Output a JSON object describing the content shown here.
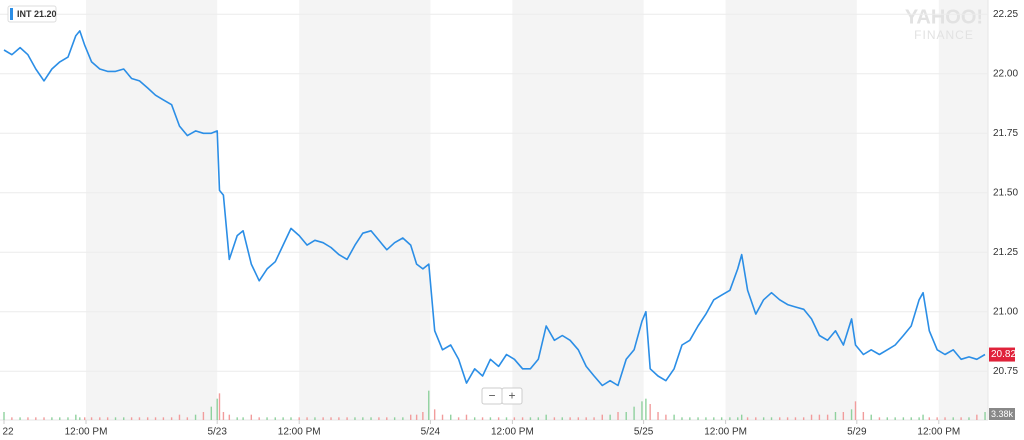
{
  "chart_data": {
    "type": "line",
    "legend_label": "INT 21.20",
    "last_value_label": "20.82",
    "volume_label": "3.38k",
    "watermark": [
      "YAHOO!",
      "FINANCE"
    ],
    "controls": [
      "−",
      "+"
    ],
    "xlim": [
      0,
      30
    ],
    "xticks": [
      {
        "value": 0,
        "label": "22"
      },
      {
        "value": 2.5,
        "label": "12:00 PM"
      },
      {
        "value": 6.5,
        "label": "5/23"
      },
      {
        "value": 9,
        "label": "12:00 PM"
      },
      {
        "value": 13,
        "label": "5/24"
      },
      {
        "value": 15.5,
        "label": "12:00 PM"
      },
      {
        "value": 19.5,
        "label": "5/25"
      },
      {
        "value": 22,
        "label": "12:00 PM"
      },
      {
        "value": 26,
        "label": "5/29"
      },
      {
        "value": 28.5,
        "label": "12:00 PM"
      }
    ],
    "ylim": [
      20.65,
      22.31
    ],
    "yticks": [
      {
        "value": 20.75,
        "label": "20.75"
      },
      {
        "value": 21,
        "label": "21.00"
      },
      {
        "value": 21.25,
        "label": "21.25"
      },
      {
        "value": 21.5,
        "label": "21.50"
      },
      {
        "value": 21.75,
        "label": "21.75"
      },
      {
        "value": 22,
        "label": "22.00"
      },
      {
        "value": 22.25,
        "label": "22.25"
      }
    ],
    "grid": true,
    "vlim": [
      0,
      12
    ],
    "x": [
      0,
      0.24,
      0.49,
      0.73,
      0.97,
      1.22,
      1.46,
      1.7,
      1.95,
      2.19,
      2.31,
      2.46,
      2.67,
      2.92,
      3.16,
      3.4,
      3.65,
      3.89,
      4.13,
      4.38,
      4.62,
      4.86,
      5.11,
      5.35,
      5.59,
      5.84,
      6.08,
      6.32,
      6.5,
      6.57,
      6.69,
      6.87,
      7.11,
      7.29,
      7.54,
      7.78,
      8.02,
      8.27,
      8.51,
      8.75,
      9,
      9.24,
      9.48,
      9.73,
      9.97,
      10.21,
      10.46,
      10.7,
      10.94,
      11.19,
      11.43,
      11.67,
      11.91,
      12.16,
      12.4,
      12.58,
      12.77,
      12.95,
      13.13,
      13.37,
      13.62,
      13.86,
      14.1,
      14.35,
      14.59,
      14.83,
      15.08,
      15.32,
      15.56,
      15.81,
      16.05,
      16.29,
      16.53,
      16.78,
      17.02,
      17.26,
      17.51,
      17.75,
      17.99,
      18.24,
      18.48,
      18.72,
      18.97,
      19.21,
      19.45,
      19.57,
      19.7,
      19.94,
      20.18,
      20.43,
      20.67,
      20.91,
      21.16,
      21.4,
      21.64,
      21.88,
      22.13,
      22.37,
      22.49,
      22.67,
      22.92,
      23.16,
      23.4,
      23.65,
      23.89,
      24.13,
      24.38,
      24.62,
      24.86,
      25.11,
      25.35,
      25.59,
      25.84,
      25.96,
      26.2,
      26.44,
      26.69,
      26.93,
      27.17,
      27.42,
      27.66,
      27.9,
      28.02,
      28.21,
      28.45,
      28.69,
      28.94,
      29.18,
      29.42,
      29.66,
      29.91
    ],
    "series": [
      {
        "name": "INT",
        "color": "#2b8ee6",
        "values": [
          22.1,
          22.08,
          22.11,
          22.08,
          22.02,
          21.97,
          22.02,
          22.05,
          22.07,
          22.16,
          22.18,
          22.12,
          22.05,
          22.02,
          22.01,
          22.01,
          22.02,
          21.98,
          21.97,
          21.94,
          21.91,
          21.89,
          21.87,
          21.78,
          21.74,
          21.76,
          21.75,
          21.75,
          21.76,
          21.51,
          21.49,
          21.22,
          21.32,
          21.34,
          21.2,
          21.13,
          21.18,
          21.21,
          21.28,
          21.35,
          21.32,
          21.28,
          21.3,
          21.29,
          21.27,
          21.24,
          21.22,
          21.28,
          21.33,
          21.34,
          21.3,
          21.26,
          21.29,
          21.31,
          21.28,
          21.2,
          21.18,
          21.2,
          20.92,
          20.84,
          20.86,
          20.8,
          20.7,
          20.76,
          20.73,
          20.8,
          20.77,
          20.82,
          20.8,
          20.76,
          20.76,
          20.8,
          20.94,
          20.88,
          20.9,
          20.88,
          20.84,
          20.77,
          20.73,
          20.69,
          20.71,
          20.69,
          20.8,
          20.84,
          20.96,
          21.0,
          20.76,
          20.73,
          20.71,
          20.76,
          20.86,
          20.88,
          20.94,
          20.99,
          21.05,
          21.07,
          21.09,
          21.18,
          21.24,
          21.09,
          20.99,
          21.05,
          21.08,
          21.05,
          21.03,
          21.02,
          21.01,
          20.97,
          20.9,
          20.88,
          20.92,
          20.86,
          20.97,
          20.86,
          20.82,
          20.84,
          20.82,
          20.84,
          20.86,
          20.9,
          20.94,
          21.05,
          21.08,
          20.92,
          20.84,
          20.82,
          20.84,
          20.8,
          20.81,
          20.8,
          20.82
        ]
      }
    ],
    "volume": [
      3,
      1,
      1,
      1,
      1,
      1,
      1,
      1,
      1,
      2,
      1,
      1,
      1,
      1,
      1,
      1,
      1,
      1,
      1,
      1,
      1,
      1,
      1,
      2,
      1,
      2,
      3,
      5,
      8,
      10,
      3,
      2,
      1,
      1,
      2,
      1,
      1,
      1,
      1,
      1,
      1,
      1,
      1,
      1,
      1,
      1,
      1,
      1,
      1,
      1,
      1,
      1,
      1,
      1,
      2,
      2,
      3,
      11,
      4,
      2,
      2,
      1,
      2,
      1,
      1,
      1,
      1,
      1,
      1,
      1,
      1,
      1,
      2,
      1,
      1,
      1,
      1,
      1,
      1,
      2,
      2,
      3,
      3,
      5,
      7,
      8,
      6,
      3,
      2,
      2,
      1,
      1,
      1,
      1,
      1,
      1,
      1,
      1,
      2,
      1,
      1,
      1,
      1,
      1,
      1,
      1,
      1,
      2,
      2,
      2,
      3,
      3,
      4,
      7,
      3,
      2,
      1,
      1,
      1,
      1,
      1,
      1,
      2,
      1,
      1,
      1,
      1,
      1,
      1,
      2,
      3
    ]
  }
}
